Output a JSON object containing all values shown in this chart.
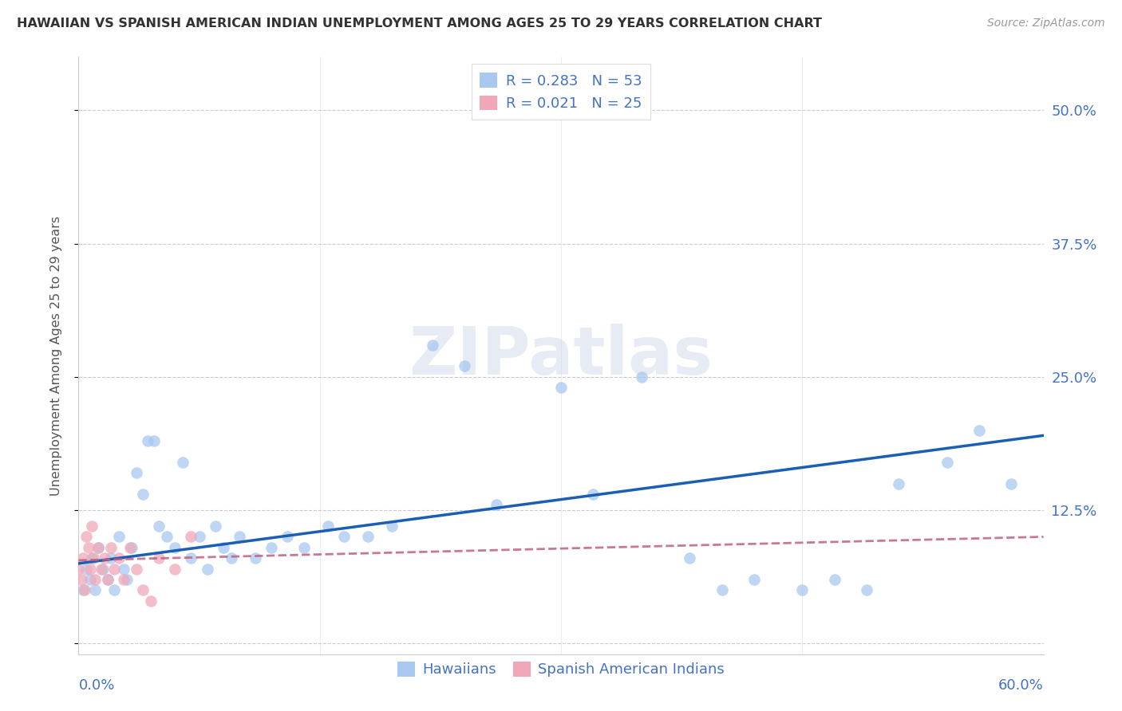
{
  "title": "HAWAIIAN VS SPANISH AMERICAN INDIAN UNEMPLOYMENT AMONG AGES 25 TO 29 YEARS CORRELATION CHART",
  "source": "Source: ZipAtlas.com",
  "ylabel": "Unemployment Among Ages 25 to 29 years",
  "ytick_values": [
    0.0,
    0.125,
    0.25,
    0.375,
    0.5
  ],
  "ytick_labels": [
    "",
    "12.5%",
    "25.0%",
    "37.5%",
    "50.0%"
  ],
  "xlim": [
    0.0,
    0.6
  ],
  "ylim": [
    -0.01,
    0.55
  ],
  "watermark": "ZIPatlas",
  "hawaiian_color": "#a8c8f0",
  "spanish_color": "#f0a8b8",
  "hawaiian_line_color": "#1a5fb4",
  "spanish_line_color": "#c06080",
  "background_color": "#ffffff",
  "grid_color": "#cccccc",
  "title_color": "#333333",
  "axis_label_color": "#4472c4",
  "legend_R_hawaiian": "R = 0.283",
  "legend_N_hawaiian": "N = 53",
  "legend_R_spanish": "R = 0.021",
  "legend_N_spanish": "N = 25",
  "bottom_label_hawaiians": "Hawaiians",
  "bottom_label_spanish": "Spanish American Indians",
  "hawaiians_x": [
    0.003,
    0.005,
    0.007,
    0.008,
    0.01,
    0.012,
    0.015,
    0.018,
    0.02,
    0.022,
    0.025,
    0.028,
    0.03,
    0.033,
    0.036,
    0.04,
    0.043,
    0.047,
    0.05,
    0.055,
    0.06,
    0.065,
    0.07,
    0.075,
    0.08,
    0.085,
    0.09,
    0.095,
    0.1,
    0.11,
    0.12,
    0.13,
    0.14,
    0.155,
    0.165,
    0.18,
    0.195,
    0.22,
    0.24,
    0.26,
    0.3,
    0.32,
    0.35,
    0.38,
    0.4,
    0.42,
    0.45,
    0.47,
    0.49,
    0.51,
    0.54,
    0.56,
    0.58
  ],
  "hawaiians_y": [
    0.05,
    0.07,
    0.06,
    0.08,
    0.05,
    0.09,
    0.07,
    0.06,
    0.08,
    0.05,
    0.1,
    0.07,
    0.06,
    0.09,
    0.16,
    0.14,
    0.19,
    0.19,
    0.11,
    0.1,
    0.09,
    0.17,
    0.08,
    0.1,
    0.07,
    0.11,
    0.09,
    0.08,
    0.1,
    0.08,
    0.09,
    0.1,
    0.09,
    0.11,
    0.1,
    0.1,
    0.11,
    0.28,
    0.26,
    0.13,
    0.24,
    0.14,
    0.25,
    0.08,
    0.05,
    0.06,
    0.05,
    0.06,
    0.05,
    0.15,
    0.17,
    0.2,
    0.15
  ],
  "spanish_x": [
    0.0,
    0.002,
    0.003,
    0.004,
    0.005,
    0.006,
    0.007,
    0.008,
    0.009,
    0.01,
    0.012,
    0.014,
    0.016,
    0.018,
    0.02,
    0.022,
    0.025,
    0.028,
    0.032,
    0.036,
    0.04,
    0.045,
    0.05,
    0.06,
    0.07
  ],
  "spanish_y": [
    0.07,
    0.06,
    0.08,
    0.05,
    0.1,
    0.09,
    0.07,
    0.11,
    0.08,
    0.06,
    0.09,
    0.07,
    0.08,
    0.06,
    0.09,
    0.07,
    0.08,
    0.06,
    0.09,
    0.07,
    0.05,
    0.04,
    0.08,
    0.07,
    0.1
  ],
  "hawaiian_trendline_x": [
    0.0,
    0.6
  ],
  "hawaiian_trendline_y": [
    0.075,
    0.195
  ],
  "spanish_trendline_x": [
    0.0,
    0.6
  ],
  "spanish_trendline_y": [
    0.078,
    0.1
  ]
}
